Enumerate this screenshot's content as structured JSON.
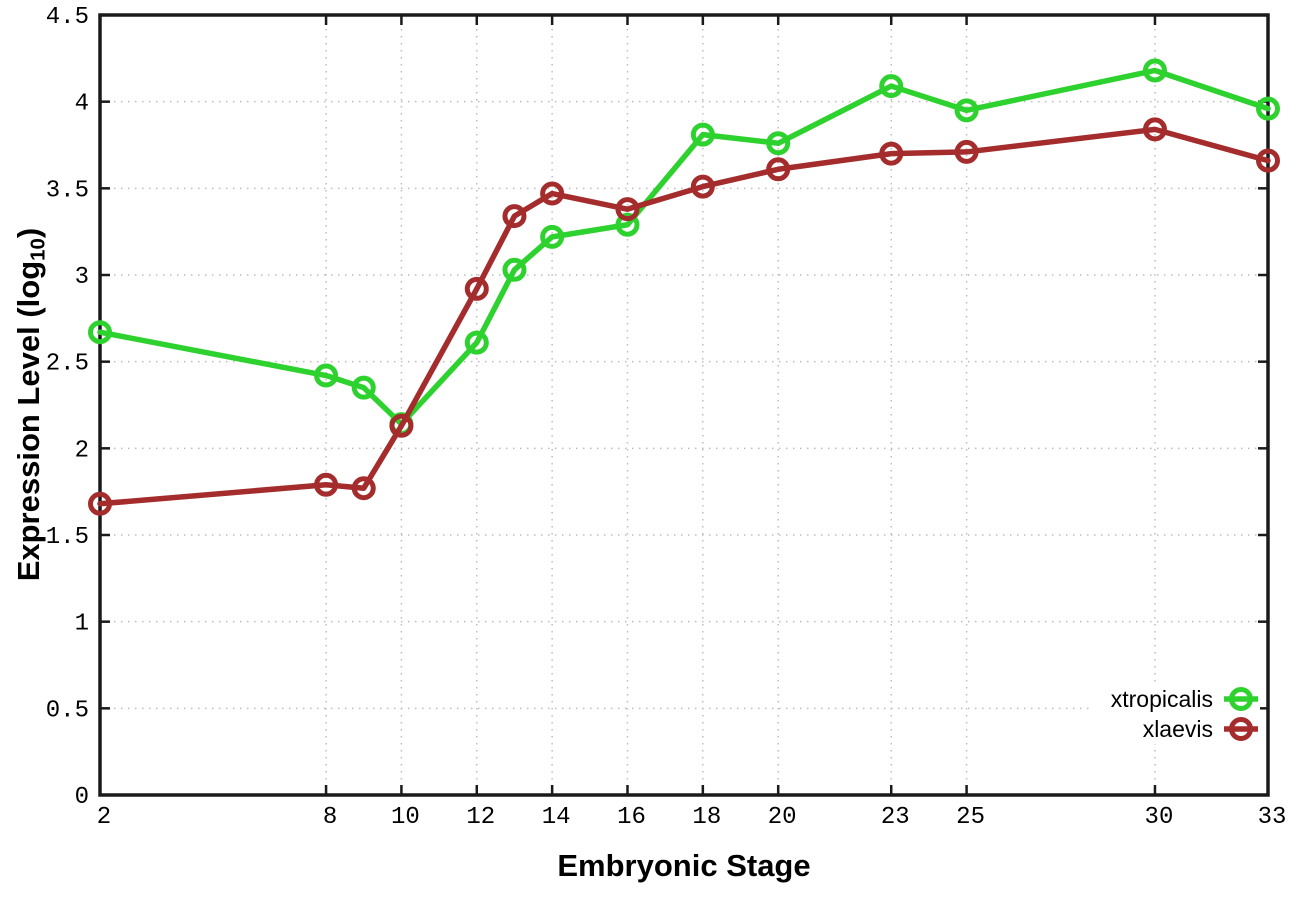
{
  "figure": {
    "xlabel": "Embryonic Stage",
    "ylabel": {
      "prefix": "Expression Level (log",
      "subscript": "10",
      "suffix": ")"
    }
  },
  "legend": {
    "entries": [
      {
        "label": "xtropicalis",
        "color": "#2ED22E"
      },
      {
        "label": "xlaevis",
        "color": "#A52C2C"
      }
    ]
  },
  "colors": {
    "axis": "#1a1a1a",
    "grid": "#bdbdbd",
    "background": "#ffffff",
    "xtropicalis": "#2ED22E",
    "xlaevis": "#A52C2C"
  },
  "chart_data": {
    "type": "line",
    "title": "",
    "xlabel": "Embryonic Stage",
    "ylabel": "Expression Level (log10)",
    "x": [
      2,
      8,
      9,
      10,
      12,
      13,
      14,
      16,
      18,
      20,
      23,
      25,
      30,
      33
    ],
    "series": [
      {
        "name": "xtropicalis",
        "color": "#2ED22E",
        "marker": "open-circle",
        "values": [
          2.67,
          2.42,
          2.35,
          2.14,
          2.61,
          3.03,
          3.22,
          3.29,
          3.81,
          3.76,
          4.09,
          3.95,
          4.18,
          3.96
        ]
      },
      {
        "name": "xlaevis",
        "color": "#A52C2C",
        "marker": "open-circle",
        "values": [
          1.68,
          1.79,
          1.77,
          2.13,
          2.92,
          3.34,
          3.47,
          3.38,
          3.51,
          3.61,
          3.7,
          3.71,
          3.84,
          3.66
        ]
      }
    ],
    "x_ticks": [
      2,
      8,
      10,
      12,
      14,
      16,
      18,
      20,
      23,
      25,
      30,
      33
    ],
    "x_tick_labels": [
      "2",
      "8",
      "10",
      "12",
      "14",
      "16",
      "18",
      "20",
      "23",
      "25",
      "30",
      "33"
    ],
    "y_ticks": [
      0,
      0.5,
      1,
      1.5,
      2,
      2.5,
      3,
      3.5,
      4,
      4.5
    ],
    "y_tick_labels": [
      "0",
      "0.5",
      "1",
      "1.5",
      "2",
      "2.5",
      "3",
      "3.5",
      "4",
      "4.5"
    ],
    "xlim": [
      2,
      33
    ],
    "ylim": [
      0,
      4.5
    ],
    "grid": true,
    "grid_style": "dotted",
    "legend_position": "inside bottom-right"
  }
}
